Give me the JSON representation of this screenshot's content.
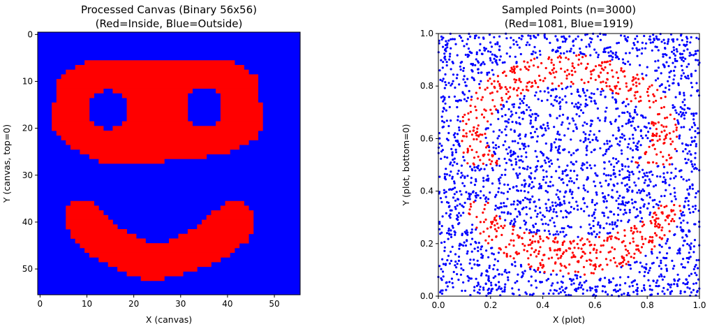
{
  "chart_data": [
    {
      "type": "heatmap",
      "title_line1": "Processed Canvas (Binary 56x56)",
      "title_line2": "(Red=Inside, Blue=Outside)",
      "xlabel": "X (canvas)",
      "ylabel": "Y (canvas, top=0)",
      "grid_size": [
        56,
        56
      ],
      "xlim": [
        -0.5,
        55.5
      ],
      "ylim": [
        55.5,
        -0.5
      ],
      "xticks": [
        0,
        10,
        20,
        30,
        40,
        50
      ],
      "yticks": [
        0,
        10,
        20,
        30,
        40,
        50
      ],
      "grid": false,
      "colors": {
        "inside": "#ff0000",
        "outside": "#0000ff"
      },
      "inside_runs": [
        [
          6,
          10,
          41
        ],
        [
          7,
          8,
          43
        ],
        [
          8,
          6,
          44
        ],
        [
          9,
          5,
          46
        ],
        [
          10,
          4,
          46
        ],
        [
          11,
          4,
          46
        ],
        [
          12,
          4,
          46
        ],
        [
          13,
          4,
          46
        ],
        [
          14,
          4,
          46
        ],
        [
          15,
          3,
          47
        ],
        [
          16,
          3,
          47
        ],
        [
          17,
          3,
          47
        ],
        [
          18,
          3,
          47
        ],
        [
          19,
          3,
          47
        ],
        [
          20,
          3,
          47
        ],
        [
          21,
          4,
          46
        ],
        [
          22,
          5,
          46
        ],
        [
          23,
          6,
          44
        ],
        [
          24,
          7,
          42
        ],
        [
          25,
          9,
          40
        ],
        [
          26,
          11,
          35
        ],
        [
          27,
          13,
          26
        ],
        [
          36,
          7,
          11
        ],
        [
          36,
          40,
          43
        ],
        [
          37,
          6,
          12
        ],
        [
          37,
          39,
          44
        ],
        [
          38,
          6,
          13
        ],
        [
          38,
          37,
          45
        ],
        [
          39,
          6,
          14
        ],
        [
          39,
          36,
          45
        ],
        [
          40,
          6,
          15
        ],
        [
          40,
          35,
          45
        ],
        [
          41,
          6,
          16
        ],
        [
          41,
          34,
          45
        ],
        [
          42,
          7,
          18
        ],
        [
          42,
          32,
          45
        ],
        [
          43,
          7,
          20
        ],
        [
          43,
          30,
          44
        ],
        [
          44,
          8,
          22
        ],
        [
          44,
          28,
          44
        ],
        [
          45,
          9,
          42
        ],
        [
          46,
          10,
          41
        ],
        [
          47,
          11,
          40
        ],
        [
          48,
          13,
          38
        ],
        [
          49,
          15,
          36
        ],
        [
          50,
          17,
          33
        ],
        [
          51,
          19,
          30
        ],
        [
          52,
          22,
          26
        ]
      ],
      "holes": [
        {
          "cx": 14.5,
          "cy": 16.0,
          "rx": 4.2,
          "ry": 4.2
        },
        {
          "cx": 35.0,
          "cy": 15.5,
          "rx": 4.0,
          "ry": 4.2
        }
      ]
    },
    {
      "type": "scatter",
      "title_line1": "Sampled Points (n=3000)",
      "title_line2": "(Red=1081, Blue=1919)",
      "xlabel": "X (plot)",
      "ylabel": "Y (plot, bottom=0)",
      "n": 3000,
      "red_count": 1081,
      "blue_count": 1919,
      "xlim": [
        0.0,
        1.0
      ],
      "ylim": [
        0.0,
        1.0
      ],
      "xticks": [
        "0.0",
        "0.2",
        "0.4",
        "0.6",
        "0.8",
        "1.0"
      ],
      "yticks": [
        "0.0",
        "0.2",
        "0.4",
        "0.6",
        "0.8",
        "1.0"
      ],
      "grid": false,
      "colors": {
        "red": "#ff0000",
        "blue": "#0000ff"
      }
    }
  ]
}
